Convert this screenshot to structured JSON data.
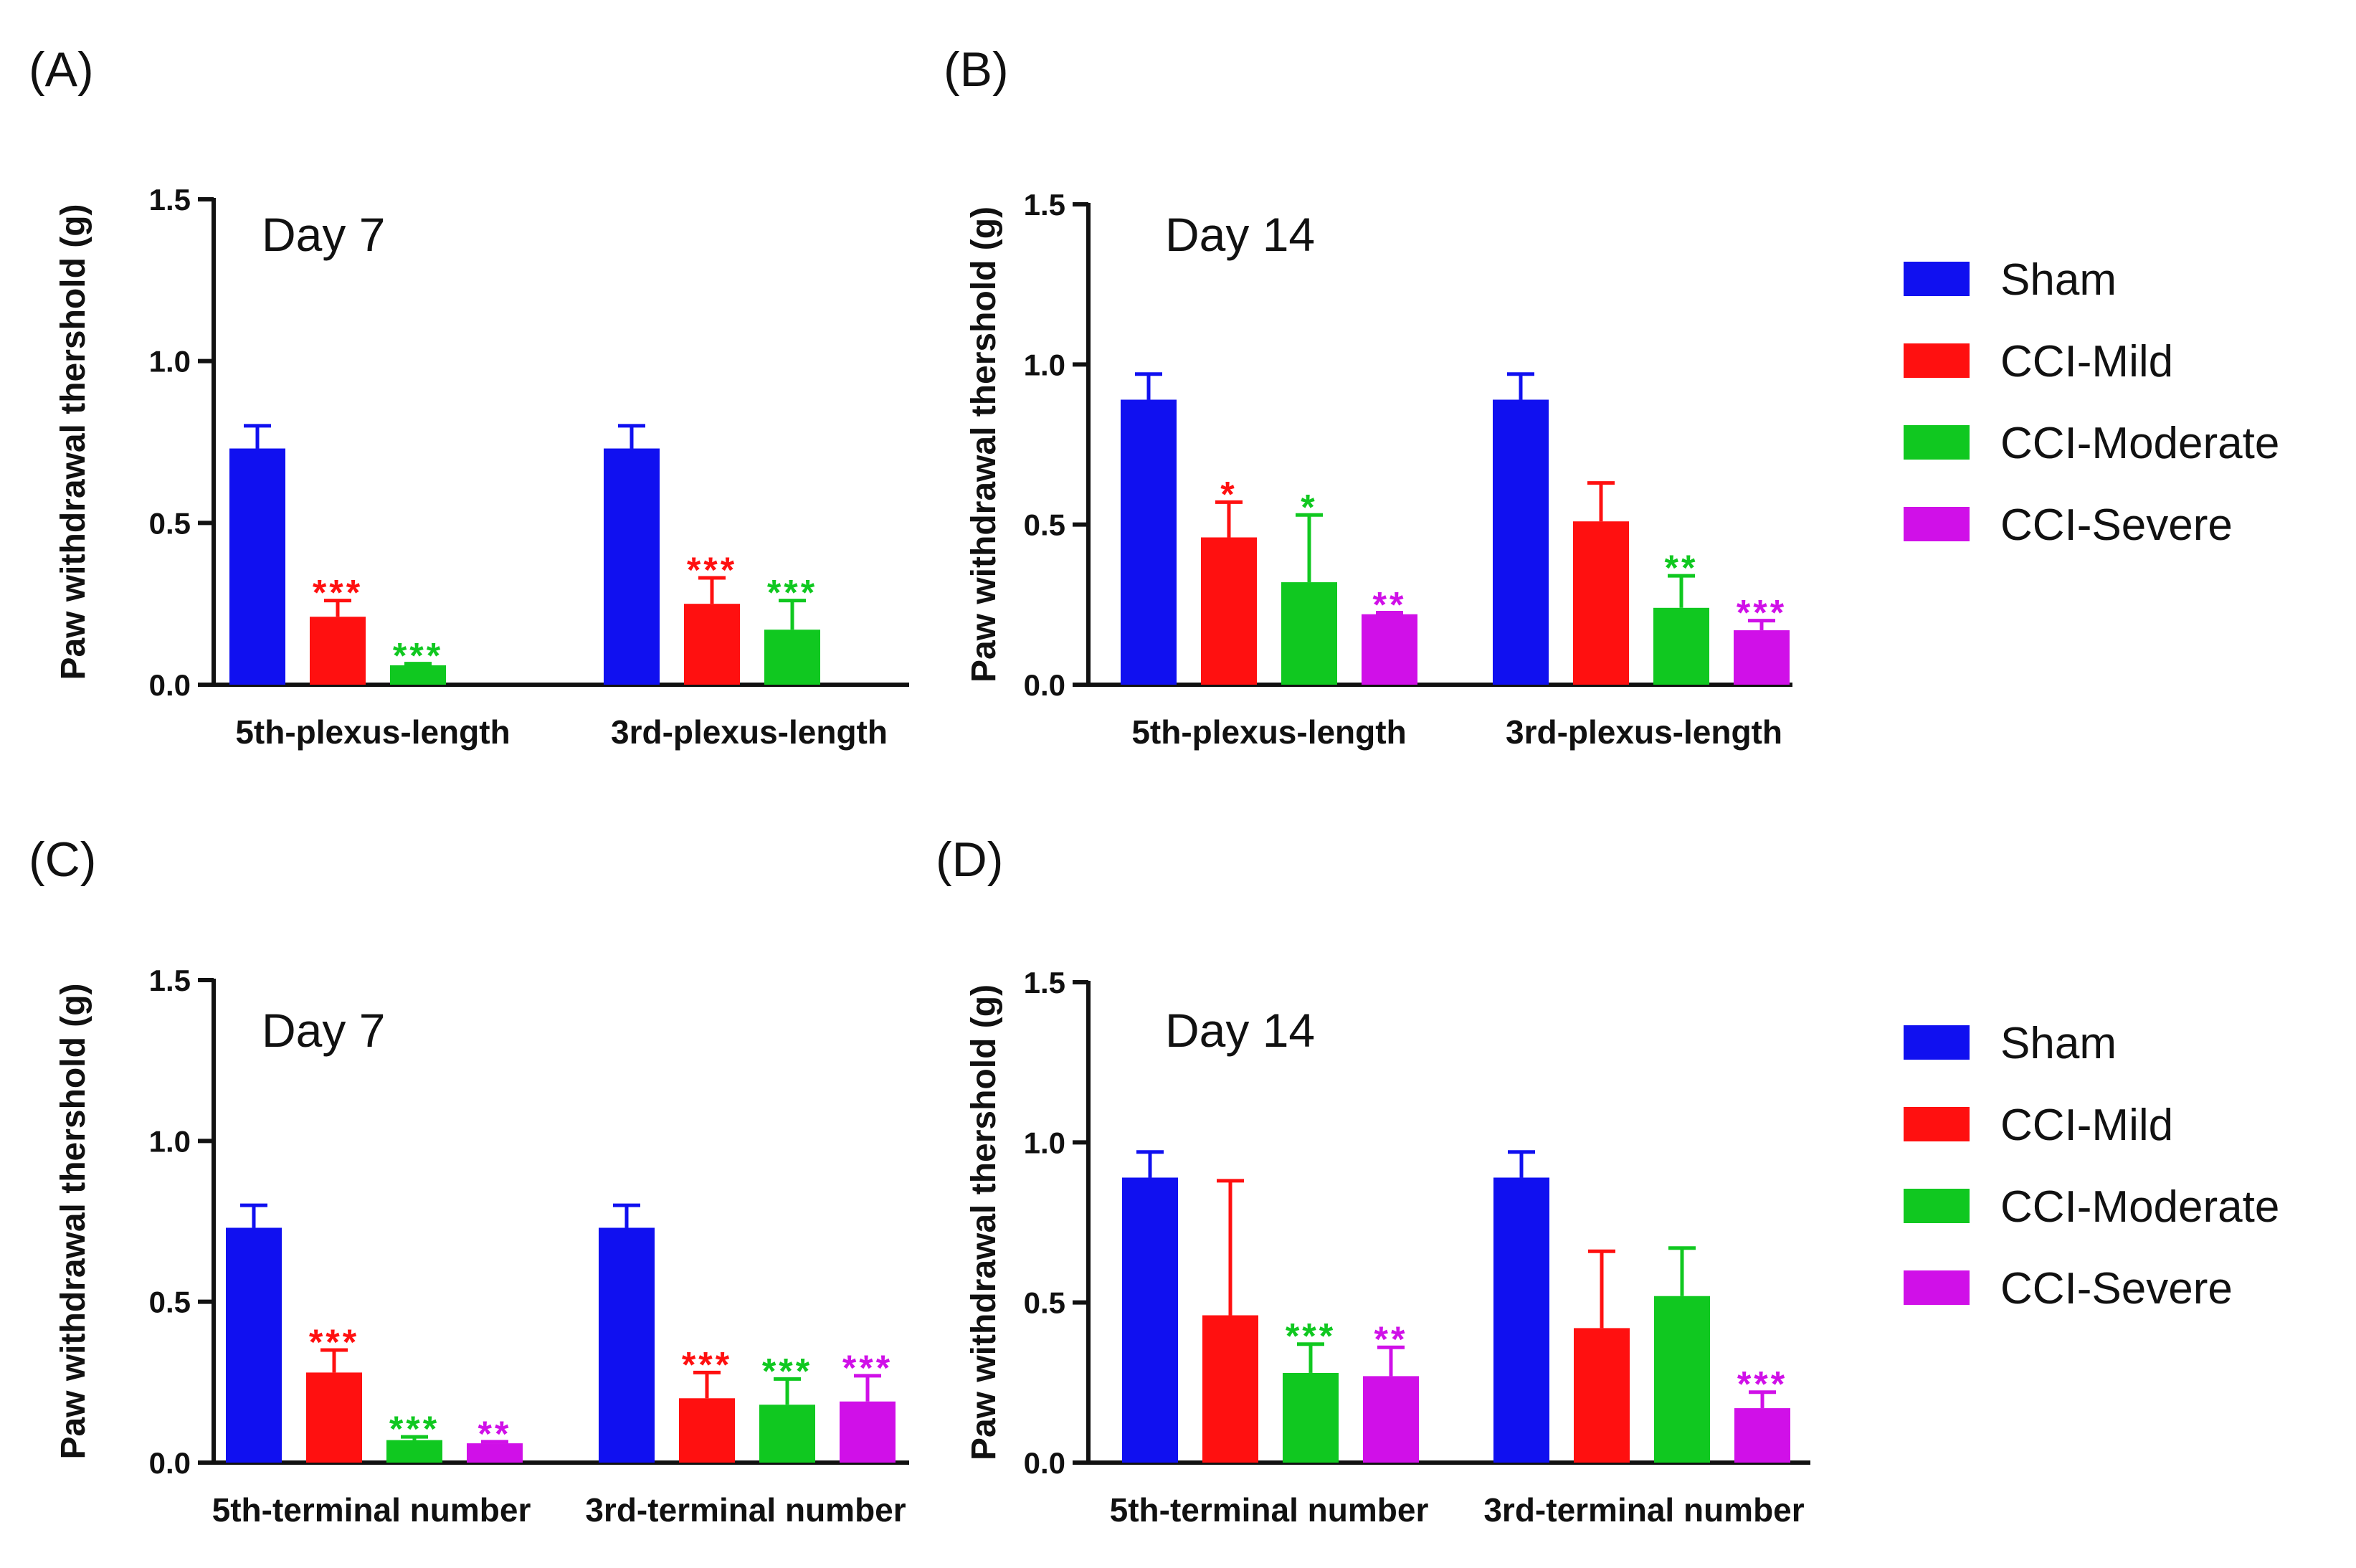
{
  "colors": {
    "Sham": "#1010f0",
    "CCI-Mild": "#ff1010",
    "CCI-Moderate": "#10c820",
    "CCI-Severe": "#d010e8"
  },
  "legends": [
    {
      "items": [
        "Sham",
        "CCI-Mild",
        "CCI-Moderate",
        "CCI-Severe"
      ]
    },
    {
      "items": [
        "Sham",
        "CCI-Mild",
        "CCI-Moderate",
        "CCI-Severe"
      ]
    }
  ],
  "chart_data": [
    {
      "type": "bar",
      "panel": "(A)",
      "title": "Day 7",
      "ylabel": "Paw withdrawal thershold (g)",
      "ylim": [
        0,
        1.5
      ],
      "yticks": [
        "0.0",
        "0.5",
        "1.0",
        "1.5"
      ],
      "categories": [
        "5th-plexus-length",
        "3rd-plexus-length"
      ],
      "series": [
        {
          "name": "Sham",
          "values": [
            0.73,
            0.73
          ],
          "errors": [
            0.07,
            0.07
          ],
          "sig": [
            "",
            ""
          ]
        },
        {
          "name": "CCI-Mild",
          "values": [
            0.21,
            0.25
          ],
          "errors": [
            0.05,
            0.08
          ],
          "sig": [
            "***",
            "***"
          ]
        },
        {
          "name": "CCI-Moderate",
          "values": [
            0.06,
            0.17
          ],
          "errors": [
            0.005,
            0.09
          ],
          "sig": [
            "***",
            "***"
          ]
        },
        {
          "name": "CCI-Severe",
          "values": [
            null,
            null
          ],
          "errors": [
            null,
            null
          ],
          "sig": [
            "",
            ""
          ]
        }
      ]
    },
    {
      "type": "bar",
      "panel": "(B)",
      "title": "Day 14",
      "ylabel": "Paw withdrawal thershold (g)",
      "ylim": [
        0,
        1.5
      ],
      "yticks": [
        "0.0",
        "0.5",
        "1.0",
        "1.5"
      ],
      "categories": [
        "5th-plexus-length",
        "3rd-plexus-length"
      ],
      "series": [
        {
          "name": "Sham",
          "values": [
            0.89,
            0.89
          ],
          "errors": [
            0.08,
            0.08
          ],
          "sig": [
            "",
            ""
          ]
        },
        {
          "name": "CCI-Mild",
          "values": [
            0.46,
            0.51
          ],
          "errors": [
            0.11,
            0.12
          ],
          "sig": [
            "*",
            ""
          ]
        },
        {
          "name": "CCI-Moderate",
          "values": [
            0.32,
            0.24
          ],
          "errors": [
            0.21,
            0.1
          ],
          "sig": [
            "*",
            "**"
          ]
        },
        {
          "name": "CCI-Severe",
          "values": [
            0.22,
            0.17
          ],
          "errors": [
            0.005,
            0.03
          ],
          "sig": [
            "**",
            "***"
          ]
        }
      ]
    },
    {
      "type": "bar",
      "panel": "(C)",
      "title": "Day 7",
      "ylabel": "Paw withdrawal thershold (g)",
      "ylim": [
        0,
        1.5
      ],
      "yticks": [
        "0.0",
        "0.5",
        "1.0",
        "1.5"
      ],
      "categories": [
        "5th-terminal number",
        "3rd-terminal number"
      ],
      "series": [
        {
          "name": "Sham",
          "values": [
            0.73,
            0.73
          ],
          "errors": [
            0.07,
            0.07
          ],
          "sig": [
            "",
            ""
          ]
        },
        {
          "name": "CCI-Mild",
          "values": [
            0.28,
            0.2
          ],
          "errors": [
            0.07,
            0.08
          ],
          "sig": [
            "***",
            "***"
          ]
        },
        {
          "name": "CCI-Moderate",
          "values": [
            0.07,
            0.18
          ],
          "errors": [
            0.01,
            0.08
          ],
          "sig": [
            "***",
            "***"
          ]
        },
        {
          "name": "CCI-Severe",
          "values": [
            0.06,
            0.19
          ],
          "errors": [
            0.005,
            0.08
          ],
          "sig": [
            "**",
            "***"
          ]
        }
      ]
    },
    {
      "type": "bar",
      "panel": "(D)",
      "title": "Day 14",
      "ylabel": "Paw withdrawal thershold (g)",
      "ylim": [
        0,
        1.5
      ],
      "yticks": [
        "0.0",
        "0.5",
        "1.0",
        "1.5"
      ],
      "categories": [
        "5th-terminal number",
        "3rd-terminal number"
      ],
      "series": [
        {
          "name": "Sham",
          "values": [
            0.89,
            0.89
          ],
          "errors": [
            0.08,
            0.08
          ],
          "sig": [
            "",
            ""
          ]
        },
        {
          "name": "CCI-Mild",
          "values": [
            0.46,
            0.42
          ],
          "errors": [
            0.42,
            0.24
          ],
          "sig": [
            "",
            ""
          ]
        },
        {
          "name": "CCI-Moderate",
          "values": [
            0.28,
            0.52
          ],
          "errors": [
            0.09,
            0.15
          ],
          "sig": [
            "***",
            ""
          ]
        },
        {
          "name": "CCI-Severe",
          "values": [
            0.27,
            0.17
          ],
          "errors": [
            0.09,
            0.05
          ],
          "sig": [
            "**",
            "***"
          ]
        }
      ]
    }
  ]
}
